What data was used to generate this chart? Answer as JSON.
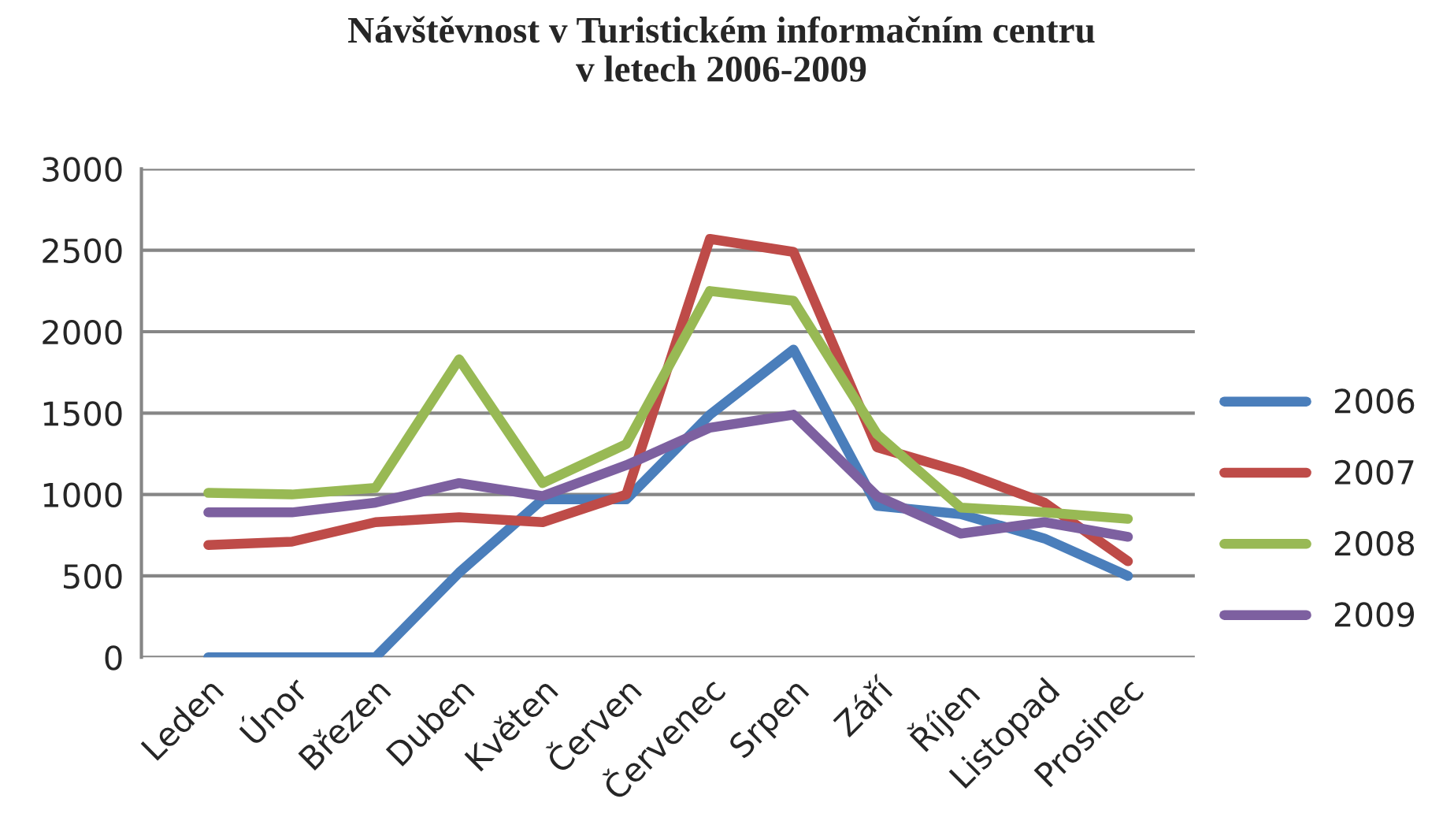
{
  "chart_data": {
    "type": "line",
    "title": "Návštěvnost v Turistickém informačním centru\nv letech 2006-2009",
    "categories": [
      "Leden",
      "Únor",
      "Březen",
      "Duben",
      "Květen",
      "Červen",
      "Červenec",
      "Srpen",
      "Září",
      "Říjen",
      "Listopad",
      "Prosinec"
    ],
    "series": [
      {
        "name": "2006",
        "color": "#4a7ebb",
        "values": [
          0,
          0,
          0,
          520,
          970,
          970,
          1490,
          1890,
          930,
          880,
          730,
          500
        ]
      },
      {
        "name": "2007",
        "color": "#be4b48",
        "values": [
          690,
          710,
          830,
          860,
          830,
          1000,
          2570,
          2490,
          1290,
          1140,
          950,
          590
        ]
      },
      {
        "name": "2008",
        "color": "#98b954",
        "values": [
          1010,
          1000,
          1040,
          1830,
          1070,
          1310,
          2250,
          2190,
          1370,
          920,
          890,
          850
        ]
      },
      {
        "name": "2009",
        "color": "#7d60a0",
        "values": [
          890,
          890,
          950,
          1070,
          990,
          1180,
          1410,
          1490,
          990,
          760,
          830,
          740
        ]
      }
    ],
    "ylim": [
      0,
      3000
    ],
    "yticks": [
      0,
      500,
      1000,
      1500,
      2000,
      2500,
      3000
    ],
    "grid": "y",
    "legend": "right",
    "marker": "none",
    "line_style": "solid"
  }
}
